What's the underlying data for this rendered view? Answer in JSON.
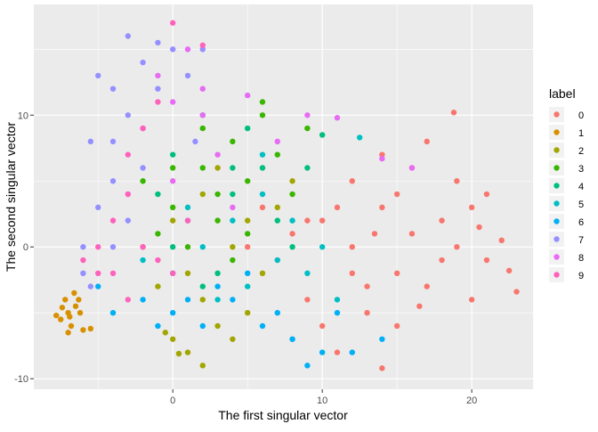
{
  "chart_data": {
    "type": "scatter",
    "xlabel": "The first singular vector",
    "ylabel": "The second singular vector",
    "xlim": [
      -9.3,
      24.1
    ],
    "ylim": [
      -10.8,
      18.4
    ],
    "xticks": [
      0,
      10,
      20
    ],
    "yticks": [
      -10,
      0,
      10
    ],
    "grid": true,
    "legend": {
      "title": "label",
      "placement": "right"
    },
    "series": [
      {
        "name": "0",
        "color": "#F8766D",
        "points": [
          [
            10,
            2
          ],
          [
            12,
            0
          ],
          [
            14,
            3
          ],
          [
            15,
            -2
          ],
          [
            16,
            1
          ],
          [
            18,
            2
          ],
          [
            17,
            -3
          ],
          [
            19,
            0
          ],
          [
            20,
            3
          ],
          [
            21,
            -1
          ],
          [
            22,
            0.5
          ],
          [
            13,
            -5
          ],
          [
            15,
            -6
          ],
          [
            14,
            -9.2
          ],
          [
            11,
            -8
          ],
          [
            9,
            -4
          ],
          [
            7,
            -1
          ],
          [
            5,
            0
          ],
          [
            6,
            3
          ],
          [
            8,
            1
          ],
          [
            12,
            5
          ],
          [
            16,
            6
          ],
          [
            18.8,
            10.2
          ],
          [
            17,
            8
          ],
          [
            20,
            -4
          ],
          [
            22.5,
            -1.8
          ],
          [
            13,
            -3
          ],
          [
            11,
            3
          ],
          [
            19,
            5
          ],
          [
            23,
            -3.4
          ],
          [
            14,
            7
          ],
          [
            10,
            -6
          ],
          [
            16.5,
            -4.5
          ],
          [
            18,
            -1
          ],
          [
            21,
            4
          ],
          [
            12,
            -2
          ],
          [
            15,
            4
          ],
          [
            9,
            2
          ],
          [
            20.5,
            1.5
          ],
          [
            13.5,
            1
          ]
        ]
      },
      {
        "name": "1",
        "color": "#D89000",
        "points": [
          [
            -7,
            -5
          ],
          [
            -6.5,
            -4.5
          ],
          [
            -7.5,
            -5.5
          ],
          [
            -6.8,
            -6
          ],
          [
            -7.2,
            -4
          ],
          [
            -6.2,
            -5
          ],
          [
            -6,
            -6.3
          ],
          [
            -7.8,
            -5.2
          ],
          [
            -6.6,
            -3.5
          ],
          [
            -7,
            -6.5
          ],
          [
            -5.5,
            -6.2
          ],
          [
            -6.3,
            -4
          ],
          [
            -7.4,
            -4.6
          ],
          [
            -6.9,
            -5.3
          ]
        ]
      },
      {
        "name": "2",
        "color": "#A3A500",
        "points": [
          [
            0,
            -7
          ],
          [
            2,
            -9
          ],
          [
            1,
            -8
          ],
          [
            3,
            -6
          ],
          [
            5,
            -5
          ],
          [
            0,
            2
          ],
          [
            2,
            4
          ],
          [
            4,
            0
          ],
          [
            6,
            -2
          ],
          [
            -1,
            -3
          ],
          [
            7,
            3
          ],
          [
            3,
            6
          ],
          [
            1,
            -2
          ],
          [
            -2,
            0
          ],
          [
            4,
            -7
          ],
          [
            8,
            5
          ],
          [
            5,
            2
          ],
          [
            2,
            -4
          ],
          [
            0.4,
            -8.1
          ],
          [
            -0.5,
            -6.5
          ]
        ]
      },
      {
        "name": "3",
        "color": "#39B600",
        "points": [
          [
            -2,
            5
          ],
          [
            0,
            3
          ],
          [
            2,
            6
          ],
          [
            4,
            8
          ],
          [
            6,
            10
          ],
          [
            3,
            2
          ],
          [
            1,
            0
          ],
          [
            5,
            5
          ],
          [
            7,
            7
          ],
          [
            -1,
            1
          ],
          [
            8,
            4
          ],
          [
            4,
            -1
          ],
          [
            2,
            9
          ],
          [
            6,
            11
          ],
          [
            9,
            9
          ],
          [
            0,
            6
          ],
          [
            3,
            4
          ],
          [
            5,
            1
          ]
        ]
      },
      {
        "name": "4",
        "color": "#00BF7D",
        "points": [
          [
            0,
            7
          ],
          [
            2,
            10
          ],
          [
            4,
            4
          ],
          [
            6,
            6
          ],
          [
            1,
            2
          ],
          [
            3,
            -2
          ],
          [
            7,
            2
          ],
          [
            -1,
            4
          ],
          [
            5,
            9
          ],
          [
            8,
            0
          ],
          [
            9,
            6
          ],
          [
            2,
            -3
          ],
          [
            10,
            8.5
          ],
          [
            0,
            0
          ],
          [
            4,
            6
          ]
        ]
      },
      {
        "name": "5",
        "color": "#00BFC4",
        "points": [
          [
            0,
            -2
          ],
          [
            2,
            0
          ],
          [
            4,
            2
          ],
          [
            6,
            4
          ],
          [
            8,
            2
          ],
          [
            3,
            -4
          ],
          [
            5,
            -3
          ],
          [
            7,
            -1
          ],
          [
            1,
            3
          ],
          [
            9,
            -2
          ],
          [
            6,
            7
          ],
          [
            10,
            0
          ],
          [
            -2,
            -1
          ],
          [
            11,
            -4
          ],
          [
            12.5,
            8.3
          ],
          [
            8,
            -7
          ]
        ]
      },
      {
        "name": "6",
        "color": "#00B0F6",
        "points": [
          [
            -4,
            -5
          ],
          [
            -2,
            -4
          ],
          [
            0,
            -5
          ],
          [
            2,
            -6
          ],
          [
            4,
            -4
          ],
          [
            6,
            -6
          ],
          [
            8,
            -7
          ],
          [
            10,
            -8
          ],
          [
            -5,
            -3
          ],
          [
            3,
            -3
          ],
          [
            7,
            -5
          ],
          [
            9,
            -9
          ],
          [
            12,
            -8
          ],
          [
            11,
            -5
          ],
          [
            14,
            -7
          ],
          [
            -1,
            -6
          ],
          [
            5,
            -2
          ],
          [
            1,
            -4
          ]
        ]
      },
      {
        "name": "7",
        "color": "#9590FF",
        "points": [
          [
            -4,
            12
          ],
          [
            -3,
            16
          ],
          [
            -5,
            13
          ],
          [
            -5.5,
            8
          ],
          [
            -4,
            5
          ],
          [
            -3,
            10
          ],
          [
            -2,
            14
          ],
          [
            -1,
            12
          ],
          [
            0,
            15
          ],
          [
            1,
            13
          ],
          [
            -6,
            0
          ],
          [
            -6,
            -2
          ],
          [
            -5,
            3
          ],
          [
            -4,
            8
          ],
          [
            -3,
            2
          ],
          [
            -2,
            6
          ],
          [
            2,
            15
          ],
          [
            -4,
            0
          ],
          [
            -5.5,
            -3
          ],
          [
            1.5,
            8
          ],
          [
            -1,
            15.5
          ]
        ]
      },
      {
        "name": "8",
        "color": "#E76BF3",
        "points": [
          [
            -2,
            9
          ],
          [
            0,
            11
          ],
          [
            2,
            12
          ],
          [
            -1,
            13
          ],
          [
            1,
            15
          ],
          [
            3,
            7
          ],
          [
            5,
            11.5
          ],
          [
            7,
            8
          ],
          [
            9,
            10
          ],
          [
            11,
            9.8
          ],
          [
            14,
            6.7
          ],
          [
            16,
            6
          ],
          [
            -3,
            4
          ],
          [
            0,
            5
          ],
          [
            4,
            3
          ],
          [
            2,
            10
          ]
        ]
      },
      {
        "name": "9",
        "color": "#FF62BC",
        "points": [
          [
            -5,
            0
          ],
          [
            -4,
            2
          ],
          [
            -3,
            4
          ],
          [
            -2,
            0
          ],
          [
            -1,
            -1
          ],
          [
            0,
            17
          ],
          [
            2,
            15.3
          ],
          [
            -4,
            -2
          ],
          [
            -3,
            7
          ],
          [
            -1,
            11
          ],
          [
            1,
            2
          ],
          [
            -5,
            -2
          ],
          [
            -2,
            9
          ],
          [
            0,
            -2
          ],
          [
            -3,
            -4
          ],
          [
            -6,
            -1
          ]
        ]
      }
    ]
  }
}
